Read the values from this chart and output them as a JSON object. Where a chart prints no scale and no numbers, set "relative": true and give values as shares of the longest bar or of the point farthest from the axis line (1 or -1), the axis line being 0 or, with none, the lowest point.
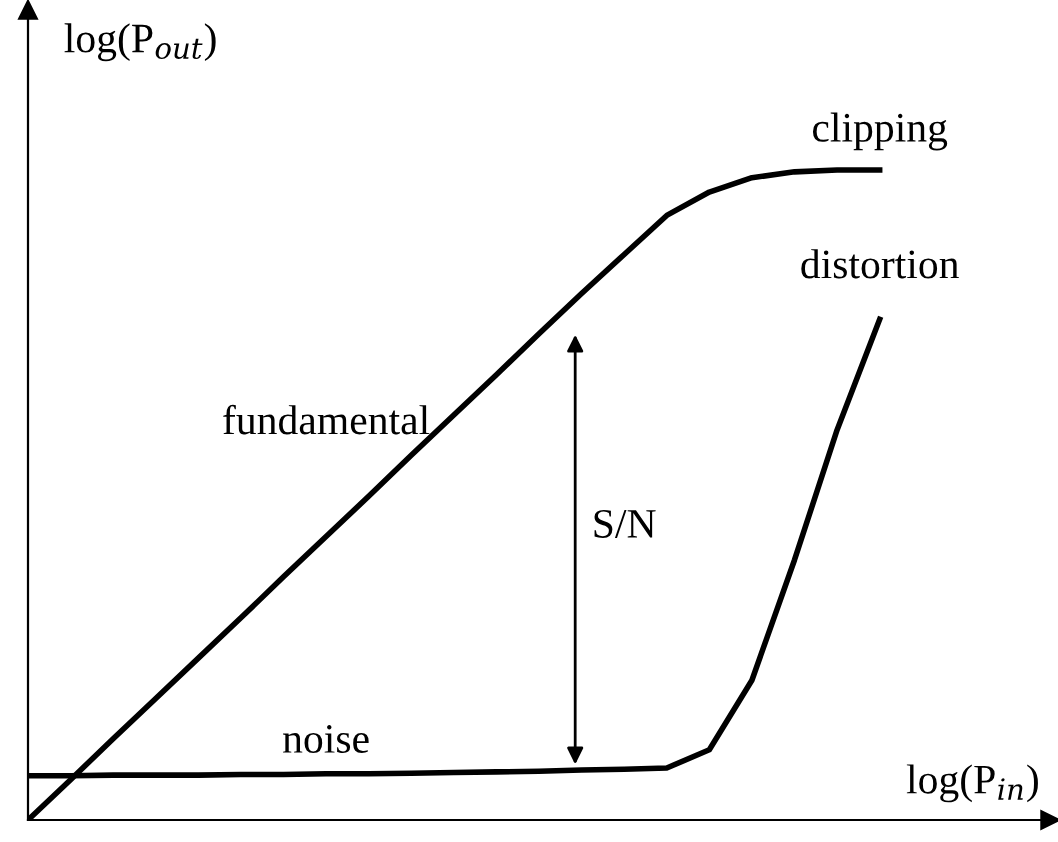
{
  "chart_data": {
    "type": "line",
    "relative": true,
    "xlabel": "log(P$_{in}$)",
    "ylabel": "log(P$_{out}$)",
    "categories": [
      null,
      null,
      null,
      null,
      null,
      null,
      null,
      null,
      null,
      null,
      null,
      null,
      null,
      null,
      null,
      null,
      null,
      null,
      null,
      null,
      null
    ],
    "series": [
      {
        "name": "fundamental",
        "color": "#000000",
        "values": [
          0,
          0.062,
          0.125,
          0.187,
          0.249,
          0.311,
          0.374,
          0.436,
          0.498,
          0.561,
          0.623,
          0.685,
          0.748,
          0.81,
          0.87,
          0.93,
          0.966,
          0.988,
          0.997,
          1.0,
          1.0
        ]
      },
      {
        "name": "distortion",
        "color": "#000000",
        "values": [
          0.068,
          0.068,
          0.069,
          0.069,
          0.069,
          0.07,
          0.07,
          0.071,
          0.071,
          0.072,
          0.073,
          0.074,
          0.075,
          0.077,
          0.078,
          0.08,
          0.108,
          0.215,
          0.4,
          0.6,
          0.77
        ]
      }
    ],
    "annotations": [
      "clipping",
      "noise",
      "S/N"
    ],
    "grid": false,
    "legend": false,
    "marker": "none",
    "line_style": "solid"
  }
}
